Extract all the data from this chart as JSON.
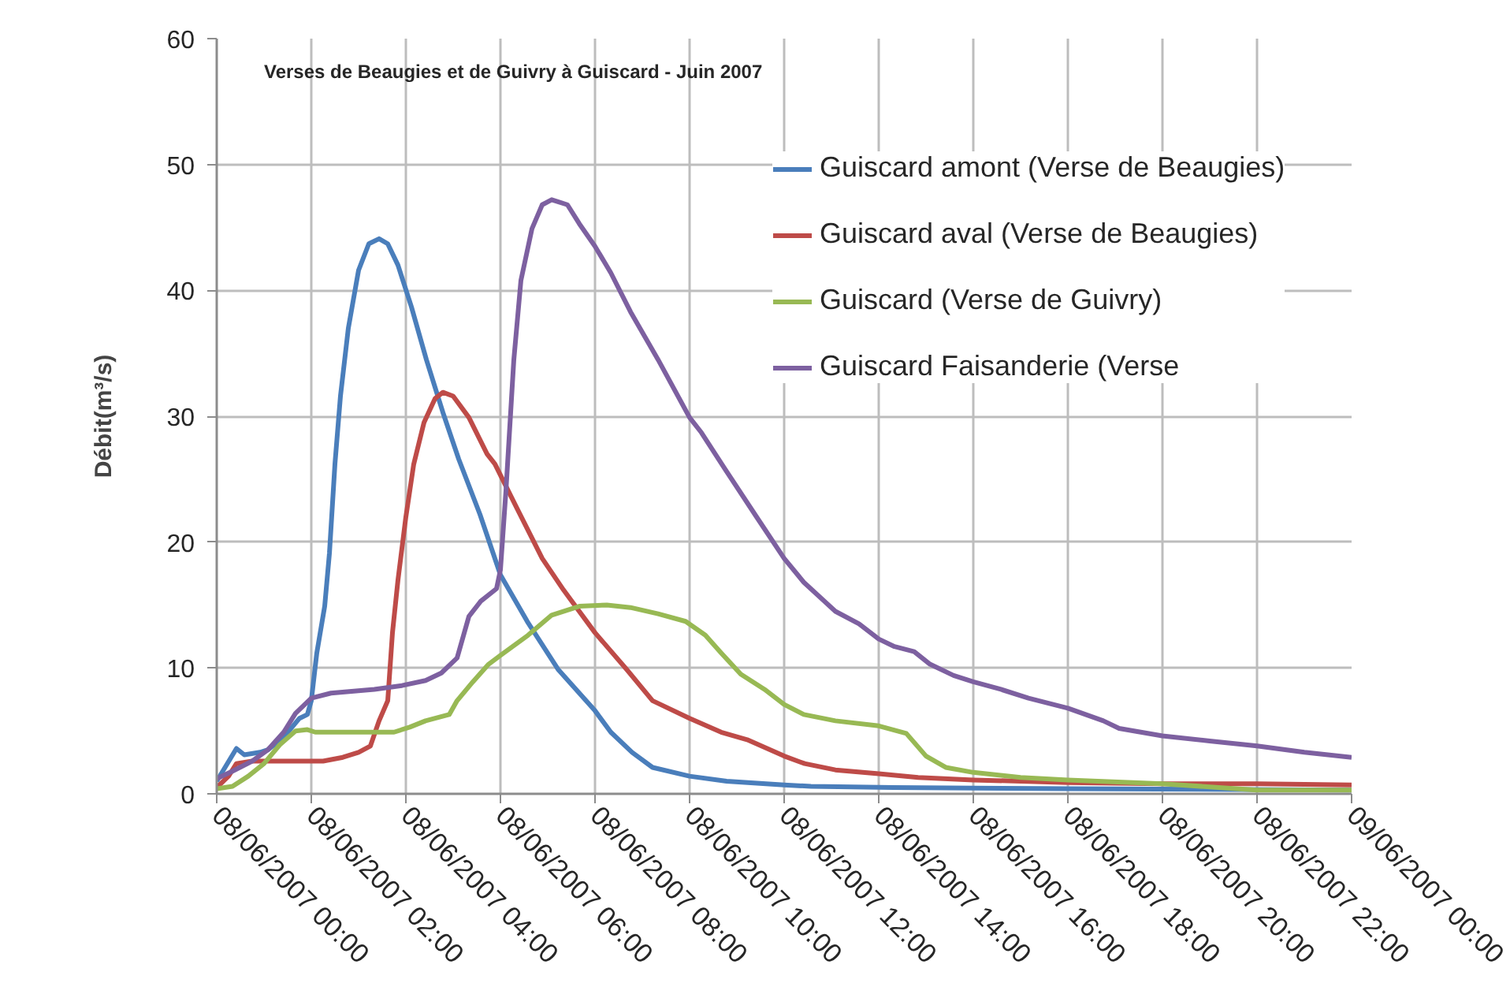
{
  "chart_data": {
    "type": "line",
    "title": "Verses de Beaugies et de Guivry à Guiscard - Juin 2007",
    "ylabel": "Débit(m³/s)",
    "xlim": [
      "2007-06-08T00:00",
      "2007-06-09T00:00"
    ],
    "xticks": [
      {
        "value": "2007-06-08T00:00",
        "label": "08/06/2007 00:00"
      },
      {
        "value": "2007-06-08T02:00",
        "label": "08/06/2007 02:00"
      },
      {
        "value": "2007-06-08T04:00",
        "label": "08/06/2007 04:00"
      },
      {
        "value": "2007-06-08T06:00",
        "label": "08/06/2007 06:00"
      },
      {
        "value": "2007-06-08T08:00",
        "label": "08/06/2007 08:00"
      },
      {
        "value": "2007-06-08T10:00",
        "label": "08/06/2007 10:00"
      },
      {
        "value": "2007-06-08T12:00",
        "label": "08/06/2007 12:00"
      },
      {
        "value": "2007-06-08T14:00",
        "label": "08/06/2007 14:00"
      },
      {
        "value": "2007-06-08T16:00",
        "label": "08/06/2007 16:00"
      },
      {
        "value": "2007-06-08T18:00",
        "label": "08/06/2007 18:00"
      },
      {
        "value": "2007-06-08T20:00",
        "label": "08/06/2007 20:00"
      },
      {
        "value": "2007-06-08T22:00",
        "label": "08/06/2007 22:00"
      },
      {
        "value": "2007-06-09T00:00",
        "label": "09/06/2007 00:00"
      }
    ],
    "ylim": [
      0,
      60
    ],
    "yticks": [
      0,
      10,
      20,
      30,
      40,
      50,
      60
    ],
    "grid": true,
    "legend": "top right",
    "series": [
      {
        "name": "Guiscard amont (Verse de Beaugies)",
        "color": "#4a7ebb",
        "x": [
          "2007-06-08T00:00",
          "2007-06-08T00:25",
          "2007-06-08T00:35",
          "2007-06-08T00:55",
          "2007-06-08T01:05",
          "2007-06-08T01:25",
          "2007-06-08T01:45",
          "2007-06-08T01:55",
          "2007-06-08T02:00",
          "2007-06-08T02:07",
          "2007-06-08T02:17",
          "2007-06-08T02:23",
          "2007-06-08T02:30",
          "2007-06-08T02:37",
          "2007-06-08T02:47",
          "2007-06-08T03:00",
          "2007-06-08T03:13",
          "2007-06-08T03:26",
          "2007-06-08T03:37",
          "2007-06-08T03:50",
          "2007-06-08T04:07",
          "2007-06-08T04:26",
          "2007-06-08T04:47",
          "2007-06-08T05:07",
          "2007-06-08T05:34",
          "2007-06-08T06:00",
          "2007-06-08T06:34",
          "2007-06-08T07:13",
          "2007-06-08T08:00",
          "2007-06-08T08:20",
          "2007-06-08T08:47",
          "2007-06-08T09:13",
          "2007-06-08T10:00",
          "2007-06-08T10:47",
          "2007-06-08T12:00",
          "2007-06-08T12:34",
          "2007-06-08T14:18",
          "2007-06-08T18:00",
          "2007-06-09T00:00"
        ],
        "values": [
          1.0,
          3.6,
          3.1,
          3.3,
          3.5,
          4.5,
          6.0,
          6.3,
          7.4,
          11.2,
          14.9,
          19.1,
          26.2,
          31.6,
          37.0,
          41.6,
          43.7,
          44.1,
          43.7,
          42.0,
          38.7,
          34.5,
          30.3,
          26.6,
          22.2,
          17.4,
          13.7,
          9.9,
          6.6,
          4.9,
          3.3,
          2.1,
          1.4,
          1.0,
          0.7,
          0.6,
          0.5,
          0.4,
          0.3
        ]
      },
      {
        "name": "Guiscard aval (Verse de Beaugies)",
        "color": "#be4b48",
        "x": [
          "2007-06-08T00:00",
          "2007-06-08T00:15",
          "2007-06-08T00:25",
          "2007-06-08T00:45",
          "2007-06-08T02:15",
          "2007-06-08T02:40",
          "2007-06-08T03:00",
          "2007-06-08T03:15",
          "2007-06-08T03:26",
          "2007-06-08T03:37",
          "2007-06-08T03:43",
          "2007-06-08T03:50",
          "2007-06-08T04:00",
          "2007-06-08T04:10",
          "2007-06-08T04:23",
          "2007-06-08T04:37",
          "2007-06-08T04:47",
          "2007-06-08T05:00",
          "2007-06-08T05:20",
          "2007-06-08T05:43",
          "2007-06-08T05:53",
          "2007-06-08T06:20",
          "2007-06-08T06:53",
          "2007-06-08T07:20",
          "2007-06-08T08:00",
          "2007-06-08T08:40",
          "2007-06-08T09:13",
          "2007-06-08T10:00",
          "2007-06-08T10:40",
          "2007-06-08T11:13",
          "2007-06-08T12:00",
          "2007-06-08T12:26",
          "2007-06-08T13:05",
          "2007-06-08T14:00",
          "2007-06-08T14:50",
          "2007-06-08T16:00",
          "2007-06-08T18:00",
          "2007-06-08T20:00",
          "2007-06-08T22:00",
          "2007-06-09T00:00"
        ],
        "values": [
          0.5,
          1.4,
          2.4,
          2.6,
          2.6,
          2.9,
          3.3,
          3.8,
          5.8,
          7.4,
          12.8,
          17.0,
          22.0,
          26.2,
          29.5,
          31.4,
          31.9,
          31.6,
          29.9,
          27.0,
          26.2,
          22.8,
          18.7,
          16.2,
          12.8,
          9.9,
          7.4,
          6.0,
          4.9,
          4.3,
          3.0,
          2.4,
          1.9,
          1.6,
          1.3,
          1.1,
          0.9,
          0.8,
          0.8,
          0.7
        ]
      },
      {
        "name": "Guiscard (Verse de Guivry)",
        "color": "#98b954",
        "x": [
          "2007-06-08T00:00",
          "2007-06-08T00:20",
          "2007-06-08T00:40",
          "2007-06-08T01:00",
          "2007-06-08T01:20",
          "2007-06-08T01:40",
          "2007-06-08T01:55",
          "2007-06-08T02:05",
          "2007-06-08T03:45",
          "2007-06-08T04:05",
          "2007-06-08T04:25",
          "2007-06-08T04:55",
          "2007-06-08T05:05",
          "2007-06-08T05:25",
          "2007-06-08T05:45",
          "2007-06-08T06:00",
          "2007-06-08T06:35",
          "2007-06-08T07:05",
          "2007-06-08T07:40",
          "2007-06-08T08:15",
          "2007-06-08T08:45",
          "2007-06-08T09:20",
          "2007-06-08T09:55",
          "2007-06-08T10:20",
          "2007-06-08T10:40",
          "2007-06-08T11:05",
          "2007-06-08T11:35",
          "2007-06-08T12:00",
          "2007-06-08T12:25",
          "2007-06-08T13:05",
          "2007-06-08T14:00",
          "2007-06-08T14:35",
          "2007-06-08T15:00",
          "2007-06-08T15:25",
          "2007-06-08T16:00",
          "2007-06-08T17:00",
          "2007-06-08T18:00",
          "2007-06-08T20:00",
          "2007-06-08T22:00",
          "2007-06-09T00:00"
        ],
        "values": [
          0.4,
          0.6,
          1.4,
          2.4,
          3.9,
          5.0,
          5.1,
          4.9,
          4.9,
          5.3,
          5.8,
          6.3,
          7.4,
          8.9,
          10.3,
          11.0,
          12.6,
          14.2,
          14.9,
          15.0,
          14.8,
          14.3,
          13.7,
          12.6,
          11.2,
          9.5,
          8.3,
          7.1,
          6.3,
          5.8,
          5.4,
          4.8,
          3.0,
          2.1,
          1.7,
          1.3,
          1.1,
          0.8,
          0.3,
          0.3
        ]
      },
      {
        "name": "Guiscard Faisanderie (Verse",
        "color": "#7d60a0",
        "x": [
          "2007-06-08T00:00",
          "2007-06-08T00:20",
          "2007-06-08T00:45",
          "2007-06-08T01:05",
          "2007-06-08T01:25",
          "2007-06-08T01:40",
          "2007-06-08T02:00",
          "2007-06-08T02:25",
          "2007-06-08T03:20",
          "2007-06-08T03:55",
          "2007-06-08T04:25",
          "2007-06-08T04:45",
          "2007-06-08T05:05",
          "2007-06-08T05:20",
          "2007-06-08T05:35",
          "2007-06-08T05:55",
          "2007-06-08T06:00",
          "2007-06-08T06:07",
          "2007-06-08T06:17",
          "2007-06-08T06:26",
          "2007-06-08T06:40",
          "2007-06-08T06:53",
          "2007-06-08T07:05",
          "2007-06-08T07:25",
          "2007-06-08T07:40",
          "2007-06-08T08:00",
          "2007-06-08T08:20",
          "2007-06-08T08:45",
          "2007-06-08T09:20",
          "2007-06-08T10:00",
          "2007-06-08T10:15",
          "2007-06-08T10:45",
          "2007-06-08T11:25",
          "2007-06-08T12:00",
          "2007-06-08T12:25",
          "2007-06-08T13:05",
          "2007-06-08T13:35",
          "2007-06-08T14:00",
          "2007-06-08T14:20",
          "2007-06-08T14:45",
          "2007-06-08T15:05",
          "2007-06-08T15:35",
          "2007-06-08T16:00",
          "2007-06-08T16:35",
          "2007-06-08T17:10",
          "2007-06-08T18:00",
          "2007-06-08T18:45",
          "2007-06-08T19:05",
          "2007-06-08T20:00",
          "2007-06-08T21:00",
          "2007-06-08T22:00",
          "2007-06-08T23:00",
          "2007-06-09T00:00"
        ],
        "values": [
          1.2,
          1.8,
          2.6,
          3.5,
          4.9,
          6.4,
          7.6,
          8.0,
          8.3,
          8.6,
          9.0,
          9.6,
          10.8,
          14.1,
          15.3,
          16.3,
          17.8,
          24.1,
          34.5,
          40.8,
          44.9,
          46.8,
          47.2,
          46.8,
          45.3,
          43.5,
          41.4,
          38.3,
          34.5,
          29.9,
          28.7,
          25.8,
          22.0,
          18.7,
          16.8,
          14.5,
          13.5,
          12.3,
          11.7,
          11.3,
          10.3,
          9.4,
          8.9,
          8.3,
          7.6,
          6.8,
          5.8,
          5.2,
          4.6,
          4.2,
          3.8,
          3.3,
          2.9
        ]
      }
    ]
  }
}
